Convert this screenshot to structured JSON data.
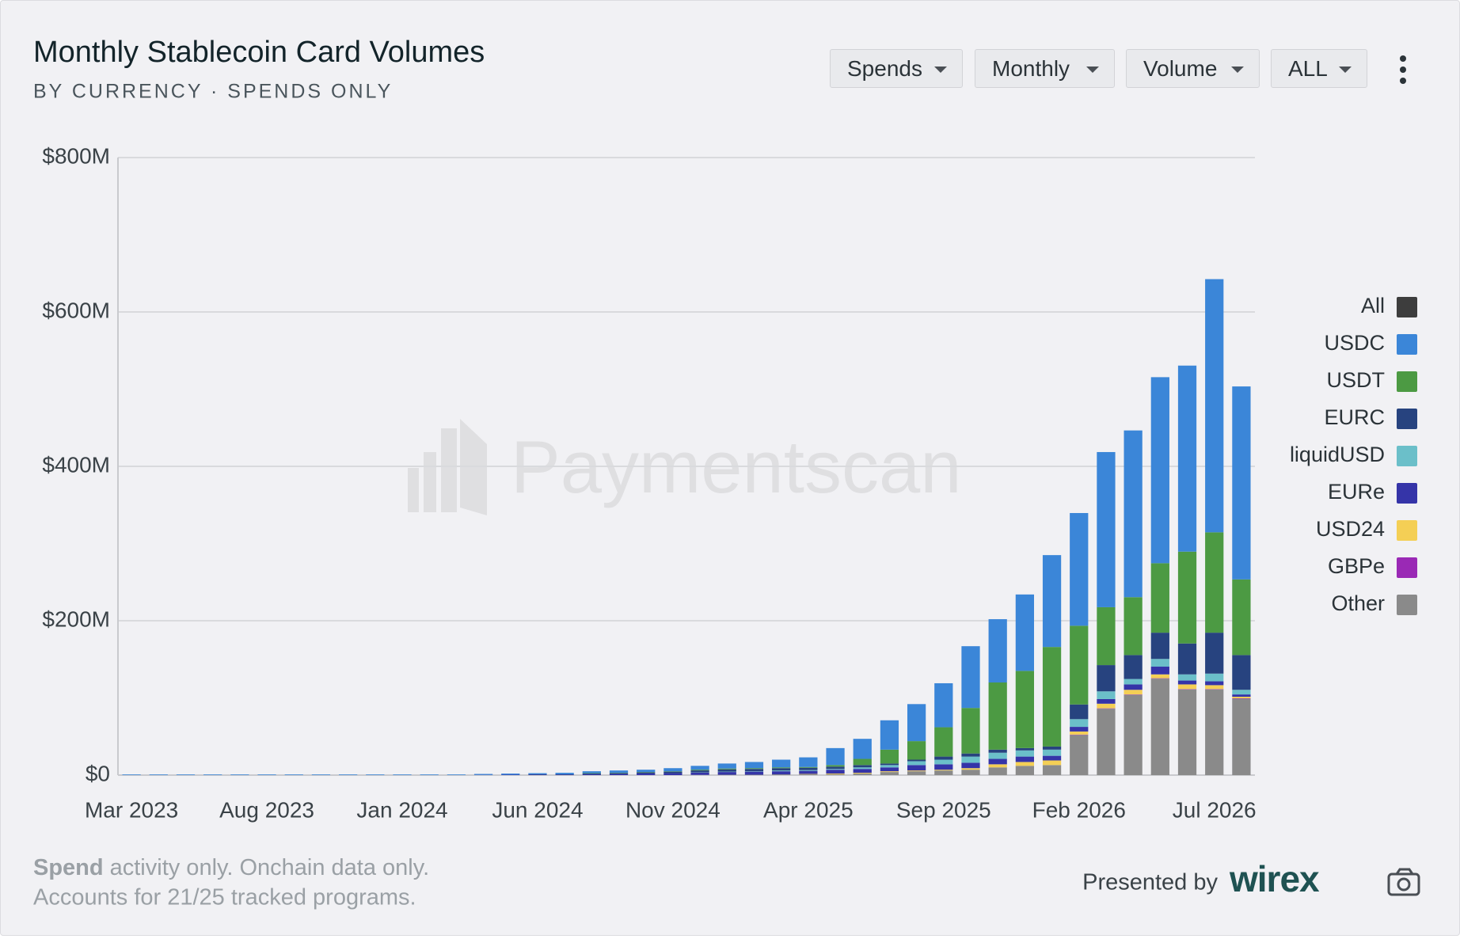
{
  "controls": [
    "Spends",
    "Monthly",
    "Volume",
    "ALL"
  ],
  "watermark": "Paymentscan",
  "footer": {
    "note_bold": "Spend",
    "note": "activity only. Onchain data only.",
    "note2": "Accounts for 21/25 tracked programs.",
    "presented_by": "Presented by",
    "brand": "wirex"
  },
  "chart_data": {
    "type": "stacked_bar",
    "title": "Monthly Stablecoin Card Volumes",
    "subtitle": "BY CURRENCY · SPENDS ONLY",
    "categories": [
      "Mar 2023",
      null,
      null,
      null,
      null,
      "Aug 2023",
      null,
      null,
      null,
      null,
      "Jan 2024",
      null,
      null,
      null,
      null,
      "Jun 2024",
      null,
      null,
      null,
      null,
      "Nov 2024",
      null,
      null,
      null,
      null,
      "Apr 2025",
      null,
      null,
      null,
      null,
      "Sep 2025",
      null,
      null,
      null,
      null,
      "Feb 2026",
      null,
      null,
      null,
      null,
      "Jul 2026",
      null
    ],
    "ylim": [
      0,
      800
    ],
    "yticks": [
      {
        "value": 0,
        "label": "$0"
      },
      {
        "value": 200,
        "label": "$200M"
      },
      {
        "value": 400,
        "label": "$400M"
      },
      {
        "value": 600,
        "label": "$600M"
      },
      {
        "value": 800,
        "label": "$800M"
      }
    ],
    "grid": true,
    "legend": "right",
    "series": [
      {
        "name": "All",
        "color": "#3d3d3d",
        "values": [
          null,
          null,
          null,
          null,
          null,
          null,
          null,
          null,
          null,
          null,
          null,
          null,
          null,
          null,
          null,
          null,
          null,
          null,
          null,
          null,
          null,
          null,
          null,
          null,
          null,
          null,
          null,
          null,
          null,
          null,
          null,
          null,
          null,
          null,
          null,
          null,
          null,
          null,
          null,
          null,
          null,
          null
        ]
      },
      {
        "name": "USDC",
        "color": "#3b86d8",
        "values": [
          0.8,
          0.8,
          0.8,
          0.8,
          0.8,
          0.8,
          0.8,
          0.8,
          0.8,
          0.8,
          0.8,
          0.8,
          0.8,
          1.2,
          1.5,
          1.5,
          2,
          2.5,
          3,
          3,
          4,
          5,
          6.5,
          8,
          10,
          12.5,
          22,
          26,
          38,
          48,
          57,
          80,
          82,
          99,
          119,
          146,
          201,
          216,
          241,
          241,
          328,
          250
        ]
      },
      {
        "name": "USDT",
        "color": "#4c9a43",
        "values": [
          0,
          0,
          0,
          0,
          0,
          0,
          0,
          0,
          0,
          0,
          0,
          0,
          0,
          0,
          0,
          0,
          0,
          0.5,
          0.5,
          0.5,
          0.5,
          0.9,
          1,
          1,
          1,
          1,
          2,
          8,
          18,
          24,
          38,
          59,
          87,
          100,
          129,
          102,
          75,
          75,
          90,
          119,
          130,
          98
        ]
      },
      {
        "name": "EURC",
        "color": "#27437f",
        "values": [
          0,
          0,
          0,
          0,
          0,
          0,
          0,
          0,
          0,
          0,
          0,
          0,
          0,
          0,
          0,
          0.5,
          0.5,
          1,
          1,
          1.5,
          2,
          2.5,
          3,
          3,
          3,
          3,
          3,
          3,
          2,
          2,
          4,
          4,
          4,
          3,
          4,
          19,
          34,
          31,
          34,
          40,
          53,
          45
        ]
      },
      {
        "name": "liquidUSD",
        "color": "#6bbfc9",
        "values": [
          0,
          0,
          0,
          0,
          0,
          0,
          0,
          0,
          0,
          0,
          0,
          0,
          0,
          0,
          0,
          0,
          0,
          0,
          0,
          0,
          0,
          0.3,
          0.5,
          0.5,
          1,
          1,
          1,
          2,
          3,
          5,
          6,
          8,
          8,
          8,
          8,
          10,
          10,
          7,
          10,
          8,
          10,
          6
        ]
      },
      {
        "name": "EURe",
        "color": "#3534a8",
        "values": [
          0,
          0,
          0,
          0,
          0,
          0,
          0,
          0,
          0,
          0,
          0,
          0,
          0,
          0.3,
          0.5,
          0.5,
          0.5,
          1,
          1.5,
          2,
          2.5,
          3,
          3.5,
          4,
          4,
          4,
          5,
          5,
          5,
          7,
          7,
          7,
          7,
          7,
          6,
          6,
          6,
          7,
          10,
          5,
          5,
          3
        ]
      },
      {
        "name": "USD24",
        "color": "#f4cf55",
        "values": [
          0,
          0,
          0,
          0,
          0,
          0,
          0,
          0,
          0,
          0,
          0,
          0,
          0,
          0,
          0,
          0,
          0,
          0,
          0,
          0,
          0,
          0,
          0,
          0,
          0,
          0.5,
          1,
          1,
          1,
          1,
          1,
          2,
          4,
          5,
          6,
          4,
          6,
          6,
          5,
          6,
          5,
          2
        ]
      },
      {
        "name": "GBPe",
        "color": "#9a29b5",
        "values": [
          0,
          0,
          0,
          0,
          0,
          0,
          0,
          0,
          0,
          0,
          0,
          0,
          0,
          0,
          0,
          0,
          0,
          0,
          0,
          0,
          0,
          0,
          0,
          0,
          0,
          0,
          0,
          0,
          0,
          0,
          0,
          0,
          0,
          0,
          0,
          0.5,
          0.5,
          0.5,
          0.5,
          0.5,
          0.5,
          0.5
        ]
      },
      {
        "name": "Other",
        "color": "#8a8a8a",
        "values": [
          0,
          0,
          0,
          0,
          0,
          0,
          0,
          0,
          0,
          0,
          0,
          0,
          0,
          0,
          0,
          0,
          0,
          0,
          0,
          0,
          0,
          0.3,
          0.5,
          0.5,
          1,
          1,
          1,
          2,
          4,
          5,
          6,
          7,
          10,
          12,
          13,
          52,
          86,
          104,
          125,
          111,
          111,
          99
        ]
      }
    ]
  }
}
